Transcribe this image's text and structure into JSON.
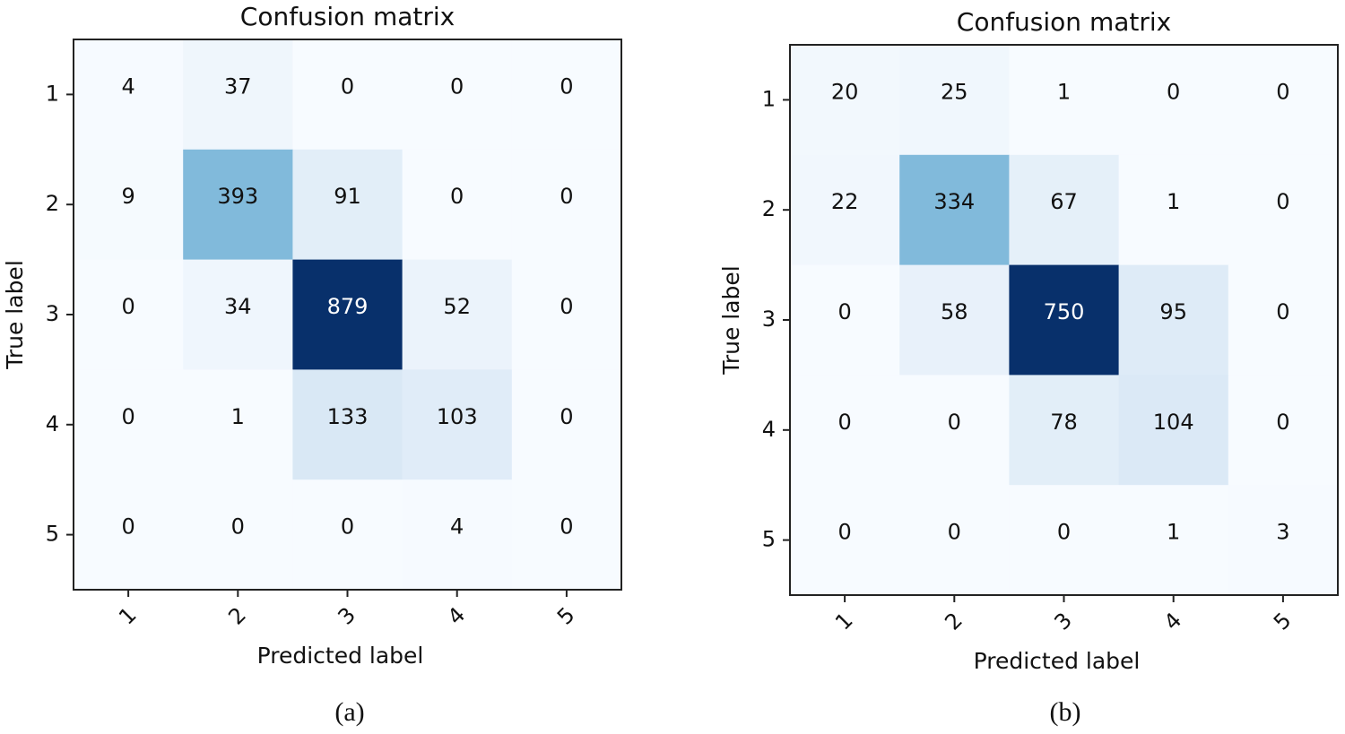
{
  "chart_data": [
    {
      "type": "heatmap",
      "title": "Confusion matrix",
      "xlabel": "Predicted label",
      "ylabel": "True label",
      "x_categories": [
        "1",
        "2",
        "3",
        "4",
        "5"
      ],
      "y_categories": [
        "1",
        "2",
        "3",
        "4",
        "5"
      ],
      "values": [
        [
          4,
          37,
          0,
          0,
          0
        ],
        [
          9,
          393,
          91,
          0,
          0
        ],
        [
          0,
          34,
          879,
          52,
          0
        ],
        [
          0,
          1,
          133,
          103,
          0
        ],
        [
          0,
          0,
          0,
          4,
          0
        ]
      ],
      "colormap": "Blues",
      "caption": "(a)"
    },
    {
      "type": "heatmap",
      "title": "Confusion matrix",
      "xlabel": "Predicted label",
      "ylabel": "True label",
      "x_categories": [
        "1",
        "2",
        "3",
        "4",
        "5"
      ],
      "y_categories": [
        "1",
        "2",
        "3",
        "4",
        "5"
      ],
      "values": [
        [
          20,
          25,
          1,
          0,
          0
        ],
        [
          22,
          334,
          67,
          1,
          0
        ],
        [
          0,
          58,
          750,
          95,
          0
        ],
        [
          0,
          0,
          78,
          104,
          0
        ],
        [
          0,
          0,
          0,
          1,
          3
        ]
      ],
      "colormap": "Blues",
      "caption": "(b)"
    }
  ]
}
